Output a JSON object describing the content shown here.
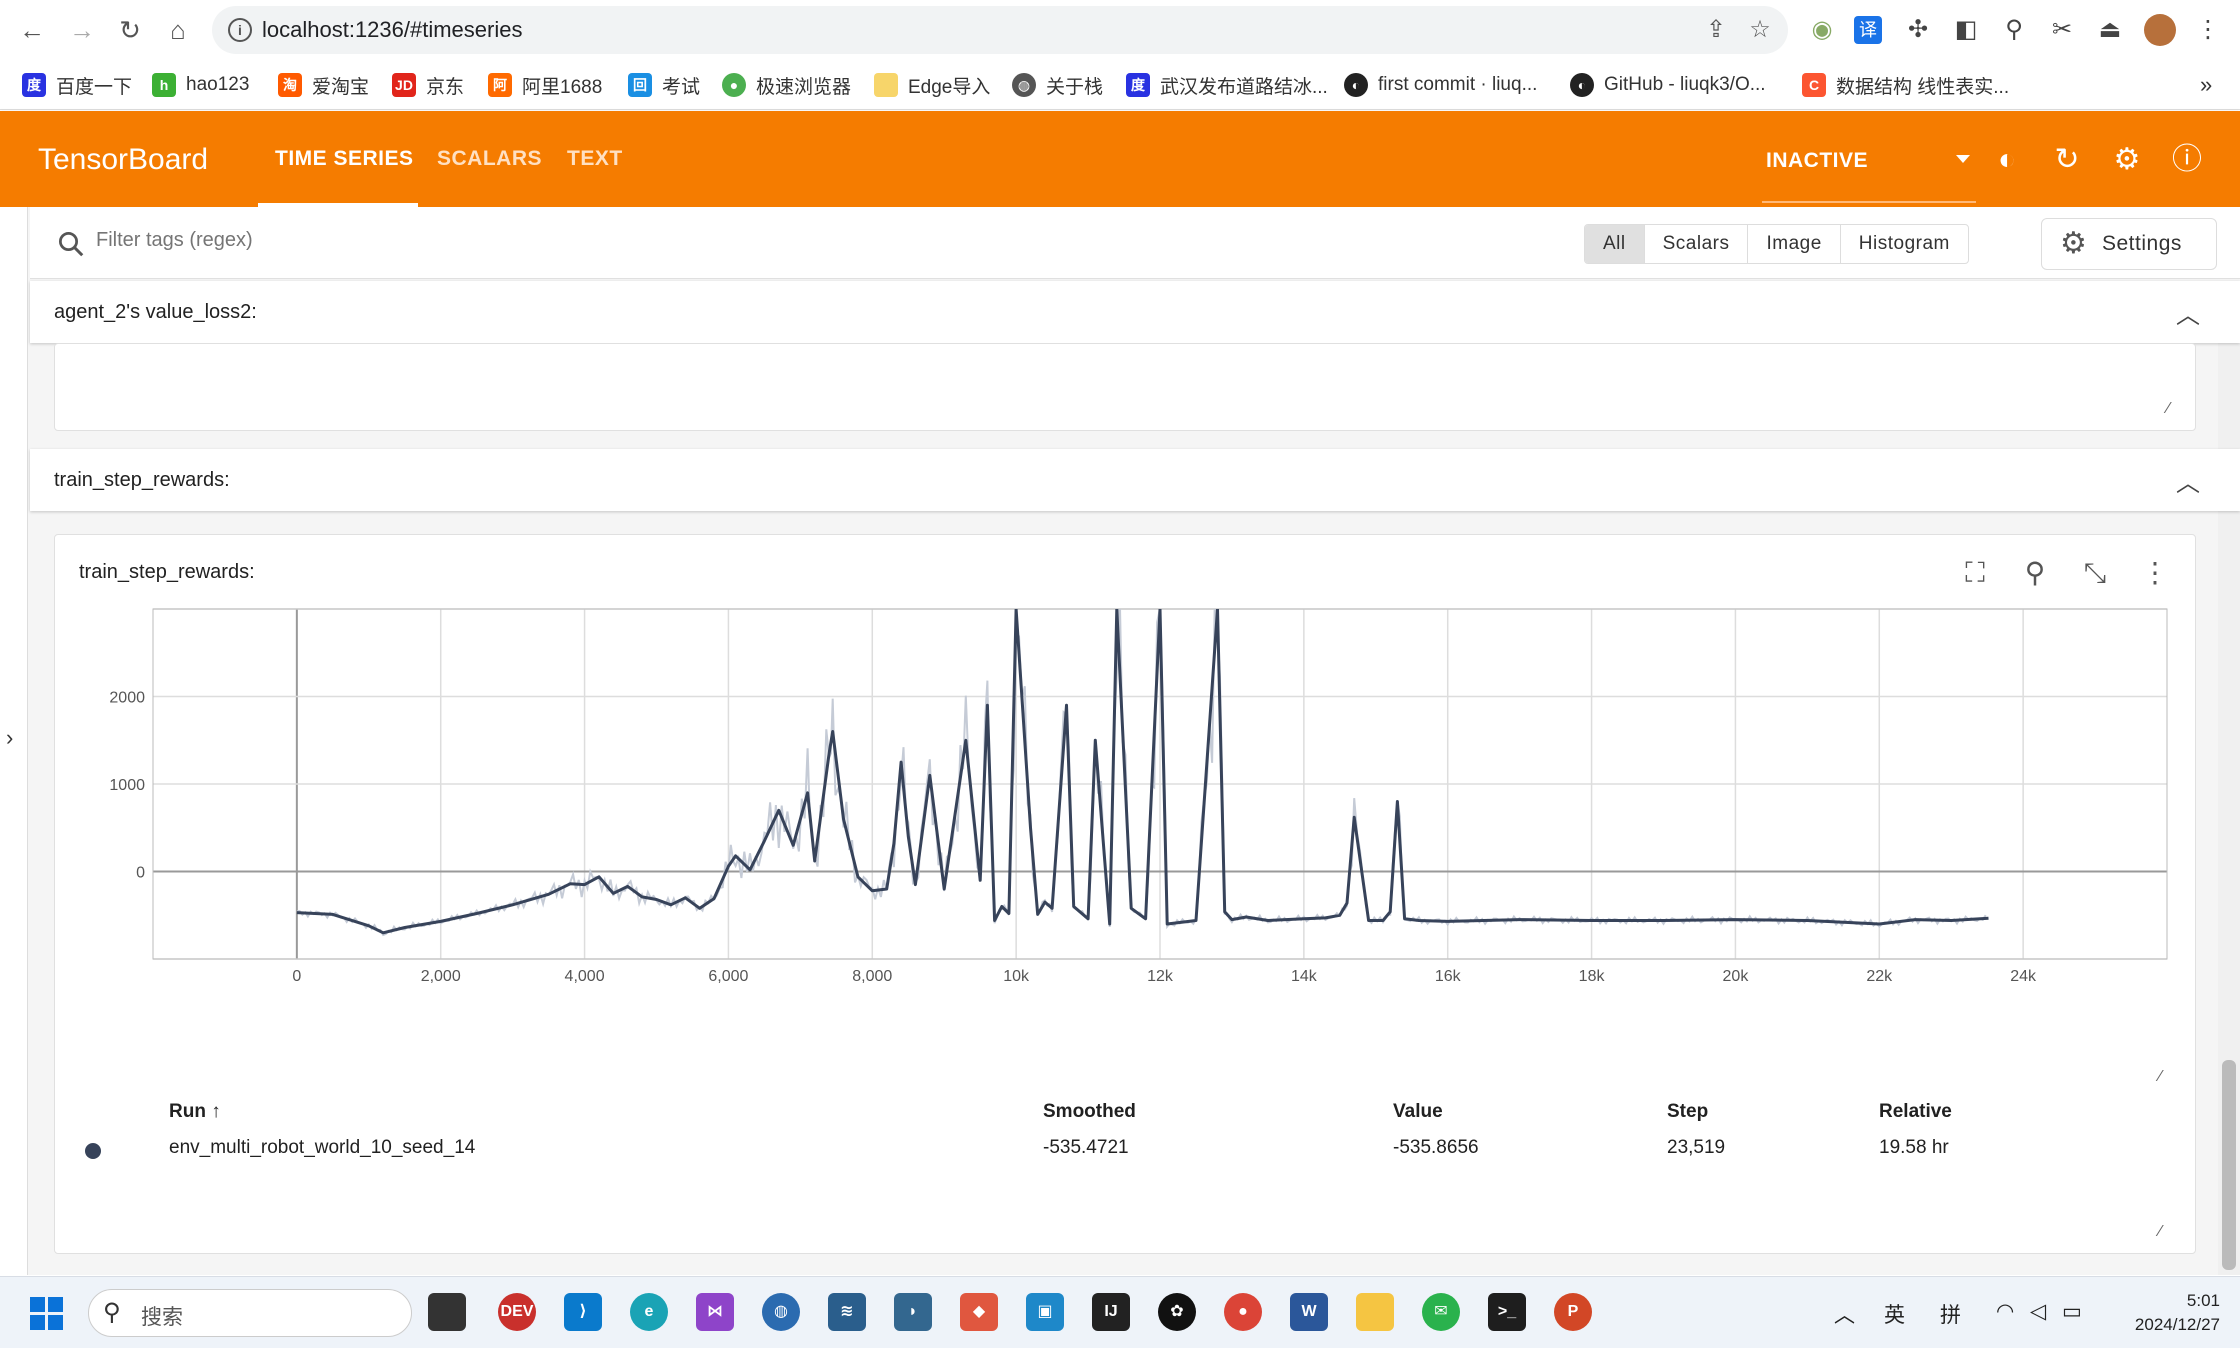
{
  "browser": {
    "url": "localhost:1236/#timeseries",
    "bookmarks": [
      "百度一下",
      "hao123",
      "爱淘宝",
      "京东",
      "阿里1688",
      "考试",
      "极速浏览器",
      "Edge导入",
      "关于栈",
      "武汉发布道路结冰...",
      "first commit · liuq...",
      "GitHub - liuqk3/O...",
      "数据结构 线性表实..."
    ],
    "more": "»"
  },
  "header": {
    "logo": "TensorBoard",
    "tabs": [
      "TIME SERIES",
      "SCALARS",
      "TEXT"
    ],
    "status": "INACTIVE"
  },
  "filter": {
    "placeholder": "Filter tags (regex)",
    "types": [
      "All",
      "Scalars",
      "Image",
      "Histogram"
    ],
    "settings_label": "Settings"
  },
  "groups": [
    {
      "title": "agent_2's value_loss2:"
    },
    {
      "title": "train_step_rewards:"
    }
  ],
  "card": {
    "title": "train_step_rewards:",
    "table": {
      "headers": [
        "Run ↑",
        "Smoothed",
        "Value",
        "Step",
        "Relative"
      ],
      "row": {
        "run": "env_multi_robot_world_10_seed_14",
        "smoothed": "-535.4721",
        "value": "-535.8656",
        "step": "23,519",
        "relative": "19.58 hr"
      }
    }
  },
  "chart_data": {
    "type": "line",
    "title": "",
    "xlabel": "",
    "ylabel": "",
    "x_ticks": [
      "0",
      "2,000",
      "4,000",
      "6,000",
      "8,000",
      "10k",
      "12k",
      "14k",
      "16k",
      "18k",
      "20k",
      "22k",
      "24k"
    ],
    "y_ticks": [
      "2000",
      "1000",
      "0"
    ],
    "xlim": [
      -2000,
      26000
    ],
    "ylim": [
      -1000,
      3000
    ],
    "grid": true,
    "colors": {
      "smoothed": "#37435a",
      "raw": "#c5cbd6"
    },
    "series": [
      {
        "name": "env_multi_robot_world_10_seed_14",
        "x": [
          0,
          500,
          1000,
          1200,
          1500,
          2000,
          2500,
          3000,
          3500,
          3800,
          4000,
          4200,
          4400,
          4600,
          4800,
          5000,
          5200,
          5400,
          5600,
          5800,
          6000,
          6100,
          6300,
          6500,
          6700,
          6900,
          7100,
          7200,
          7400,
          7450,
          7600,
          7800,
          8000,
          8200,
          8300,
          8400,
          8500,
          8600,
          8800,
          9000,
          9300,
          9500,
          9600,
          9700,
          9800,
          9900,
          10000,
          10200,
          10300,
          10400,
          10500,
          10700,
          10800,
          11000,
          11100,
          11300,
          11400,
          11600,
          11800,
          12000,
          12100,
          12200,
          12500,
          12800,
          12900,
          13000,
          13200,
          13500,
          14000,
          14300,
          14500,
          14600,
          14700,
          14900,
          15100,
          15200,
          15300,
          15400,
          15600,
          16000,
          17000,
          18000,
          19000,
          20000,
          21000,
          22000,
          22500,
          23000,
          23519
        ],
        "values": [
          -470,
          -490,
          -620,
          -700,
          -640,
          -570,
          -480,
          -380,
          -260,
          -140,
          -150,
          -60,
          -250,
          -170,
          -290,
          -320,
          -380,
          -300,
          -420,
          -310,
          60,
          180,
          20,
          350,
          700,
          300,
          900,
          120,
          1350,
          1600,
          600,
          -60,
          -220,
          -200,
          320,
          1250,
          400,
          -150,
          1100,
          -200,
          1500,
          -100,
          1900,
          -560,
          -400,
          -480,
          3000,
          500,
          -490,
          -350,
          -420,
          1900,
          -400,
          -540,
          1500,
          -600,
          3000,
          -420,
          -540,
          3000,
          -600,
          -590,
          -560,
          3000,
          -460,
          -550,
          -520,
          -560,
          -540,
          -530,
          -500,
          -360,
          620,
          -560,
          -560,
          -460,
          800,
          -540,
          -560,
          -570,
          -550,
          -560,
          -560,
          -550,
          -560,
          -600,
          -550,
          -560,
          -535
        ]
      }
    ]
  }
}
